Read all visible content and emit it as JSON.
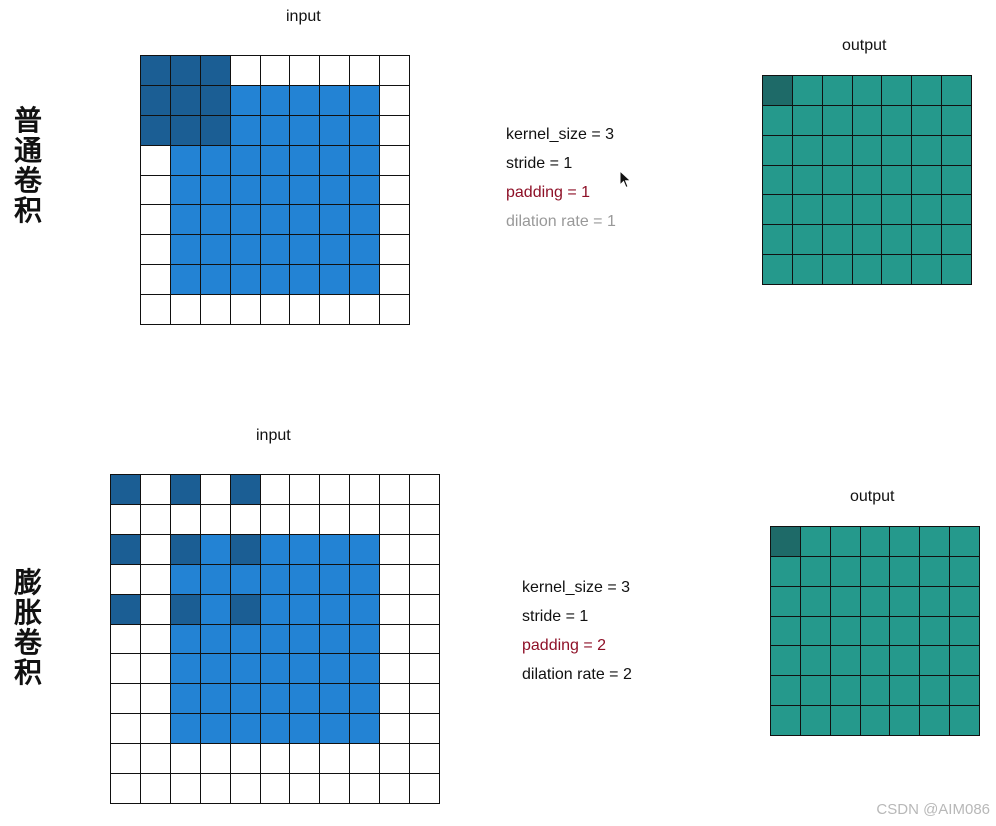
{
  "colors": {
    "kernel": "#1b5e94",
    "receptive": "#2383d4",
    "empty": "#ffffff",
    "output": "#25998c",
    "output_active": "#1e6a68",
    "padding_text": "#8e1027",
    "dilation_gray": "#999999",
    "normal_text": "#111111"
  },
  "standard": {
    "side_label": "普\n通\n卷\n积",
    "input_title": "input",
    "output_title": "output",
    "params": {
      "kernel_size": "kernel_size = 3",
      "stride": "stride = 1",
      "padding": "padding = 1",
      "dilation": "dilation rate = 1"
    },
    "input_grid": {
      "rows": 9,
      "cols": 9,
      "cells": [
        "KKK......",
        "KKKBBBBB.",
        "KKKBBBBB.",
        ".BBBBBBB.",
        ".BBBBBBB.",
        ".BBBBBBB.",
        ".BBBBBBB.",
        ".BBBBBBB.",
        "........."
      ]
    },
    "output_grid": {
      "rows": 7,
      "cols": 7,
      "active": [
        0,
        0
      ]
    }
  },
  "dilated": {
    "side_label": "膨\n胀\n卷\n积",
    "input_title": "input",
    "output_title": "output",
    "params": {
      "kernel_size": "kernel_size = 3",
      "stride": "stride = 1",
      "padding": "padding = 2",
      "dilation": "dilation rate = 2"
    },
    "input_grid": {
      "rows": 11,
      "cols": 11,
      "cells": [
        "K.K.K......",
        "...........",
        "K.KBKBBBB..",
        "..BBBBBBB..",
        "K.KBKBBBB..",
        "..BBBBBBB..",
        "..BBBBBBB..",
        "..BBBBBBB..",
        "..BBBBBBB..",
        "...........",
        "..........."
      ]
    },
    "output_grid": {
      "rows": 7,
      "cols": 7,
      "active": [
        0,
        0
      ]
    }
  },
  "watermark": "CSDN @AIM086"
}
